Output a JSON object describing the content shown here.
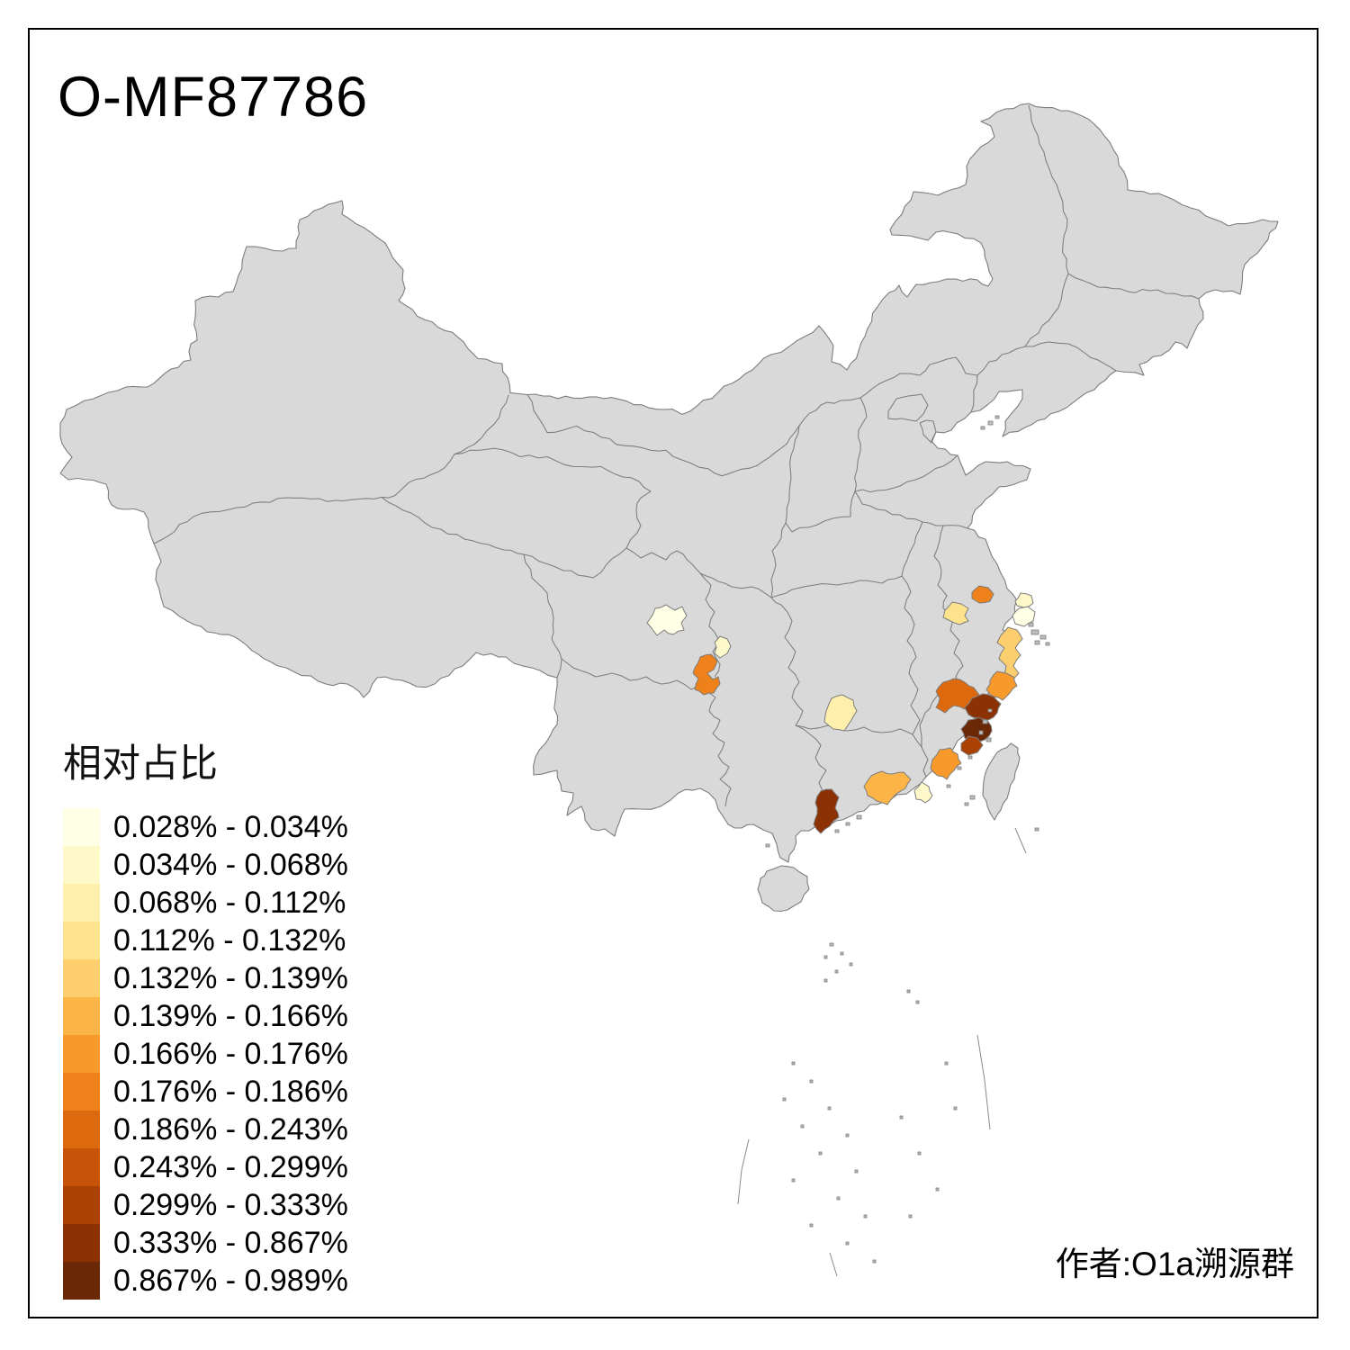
{
  "title": "O-MF87786",
  "attribution": "作者:O1a溯源群",
  "legend": {
    "title": "相对占比",
    "classes": [
      {
        "range": "0.028% - 0.034%",
        "color": "#FFFFE5"
      },
      {
        "range": "0.034% - 0.068%",
        "color": "#FFF8C9"
      },
      {
        "range": "0.068% - 0.112%",
        "color": "#FEF0AC"
      },
      {
        "range": "0.112% - 0.132%",
        "color": "#FDE38D"
      },
      {
        "range": "0.132% - 0.139%",
        "color": "#FDCE6E"
      },
      {
        "range": "0.139% - 0.166%",
        "color": "#FCB447"
      },
      {
        "range": "0.166% - 0.176%",
        "color": "#F8992B"
      },
      {
        "range": "0.176% - 0.186%",
        "color": "#EF811A"
      },
      {
        "range": "0.186% - 0.243%",
        "color": "#DD690E"
      },
      {
        "range": "0.243% - 0.299%",
        "color": "#C65307"
      },
      {
        "range": "0.299% - 0.333%",
        "color": "#AC4104"
      },
      {
        "range": "0.333% - 0.867%",
        "color": "#8C3104"
      },
      {
        "range": "0.867% - 0.989%",
        "color": "#6A2807"
      }
    ]
  },
  "map": {
    "base_fill": "#D9D9D9",
    "border_stroke": "#7D7D7D",
    "sea_fill": "#FFFFFF",
    "regions": [
      {
        "id": "chengdu",
        "color": "#FFFFE5",
        "range": "0.028% - 0.034%"
      },
      {
        "id": "sichuan-east",
        "color": "#FFF8C9",
        "range": "0.034% - 0.068%"
      },
      {
        "id": "luzhou",
        "color": "#EF811A",
        "range": "0.176% - 0.186%"
      },
      {
        "id": "central-hunan",
        "color": "#FEF0AC",
        "range": "0.068% - 0.112%"
      },
      {
        "id": "south-jiangsu",
        "color": "#EF811A",
        "range": "0.176% - 0.186%"
      },
      {
        "id": "huzhou",
        "color": "#FDE38D",
        "range": "0.112% - 0.132%"
      },
      {
        "id": "chongming",
        "color": "#FFF8C9",
        "range": "0.034% - 0.068%"
      },
      {
        "id": "shanghai",
        "color": "#FFFFE5",
        "range": "0.028% - 0.034%"
      },
      {
        "id": "ningbo-taizhou",
        "color": "#FDCE6E",
        "range": "0.132% - 0.139%"
      },
      {
        "id": "wenzhou",
        "color": "#F8992B",
        "range": "0.166% - 0.176%"
      },
      {
        "id": "nanping",
        "color": "#DD690E",
        "range": "0.186% - 0.243%"
      },
      {
        "id": "fuzhou",
        "color": "#8C3104",
        "range": "0.333% - 0.867%"
      },
      {
        "id": "putian",
        "color": "#6A2807",
        "range": "0.867% - 0.989%"
      },
      {
        "id": "quanzhou",
        "color": "#AC4104",
        "range": "0.299% - 0.333%"
      },
      {
        "id": "xiamen-zhangzhou",
        "color": "#F8992B",
        "range": "0.166% - 0.176%"
      },
      {
        "id": "meizhou",
        "color": "#FCB447",
        "range": "0.139% - 0.166%"
      },
      {
        "id": "chaoshan",
        "color": "#FFF8C9",
        "range": "0.034% - 0.068%"
      },
      {
        "id": "pearl-river-delta",
        "color": "#8C3104",
        "range": "0.333% - 0.867%"
      }
    ]
  }
}
